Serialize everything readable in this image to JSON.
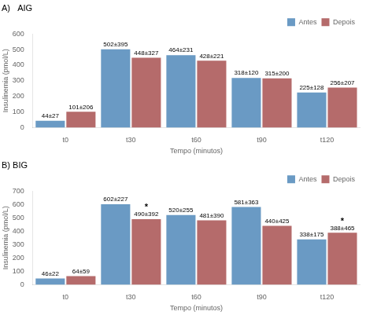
{
  "chart_data": [
    {
      "type": "bar",
      "title": "A)   AIG",
      "categories": [
        "t0",
        "t30",
        "t60",
        "t90",
        "t120"
      ],
      "series": [
        {
          "name": "Antes",
          "color": "#6A9AC4",
          "values": [
            44,
            502,
            464,
            318,
            225
          ],
          "value_labels": [
            "44±27",
            "502±395",
            "464±231",
            "318±120",
            "225±128"
          ]
        },
        {
          "name": "Depois",
          "color": "#B56B6B",
          "values": [
            101,
            448,
            428,
            315,
            256
          ],
          "value_labels": [
            "101±206",
            "448±327",
            "428±221",
            "315±200",
            "256±207"
          ]
        }
      ],
      "xlabel": "Tempo (minutos)",
      "ylabel": "Insulinemia (pmol/L)",
      "ylim": [
        0,
        600
      ],
      "yticks": [
        0,
        100,
        200,
        300,
        400,
        500,
        600
      ],
      "grid": false,
      "legend": "upper right",
      "data_labels": true
    },
    {
      "type": "bar",
      "title": "B) BIG",
      "categories": [
        "t0",
        "t30",
        "t60",
        "t90",
        "t120"
      ],
      "series": [
        {
          "name": "Antes",
          "color": "#6A9AC4",
          "values": [
            46,
            602,
            520,
            581,
            338
          ],
          "value_labels": [
            "46±22",
            "602±227",
            "520±255",
            "581±363",
            "338±175"
          ]
        },
        {
          "name": "Depois",
          "color": "#B56B6B",
          "values": [
            64,
            490,
            481,
            440,
            388
          ],
          "value_labels": [
            "64±59",
            "490±392",
            "481±390",
            "440±425",
            "388±465"
          ]
        }
      ],
      "xlabel": "Tempo (minutos)",
      "ylabel": "Insulinemia (pmol/L)",
      "ylim": [
        0,
        700
      ],
      "yticks": [
        0,
        100,
        200,
        300,
        400,
        500,
        600,
        700
      ],
      "grid": false,
      "legend": "upper right",
      "data_labels": true,
      "annotations": [
        {
          "category": "t30",
          "series": "Depois",
          "text": "*"
        },
        {
          "category": "t120",
          "series": "Depois",
          "text": "*"
        }
      ]
    }
  ]
}
